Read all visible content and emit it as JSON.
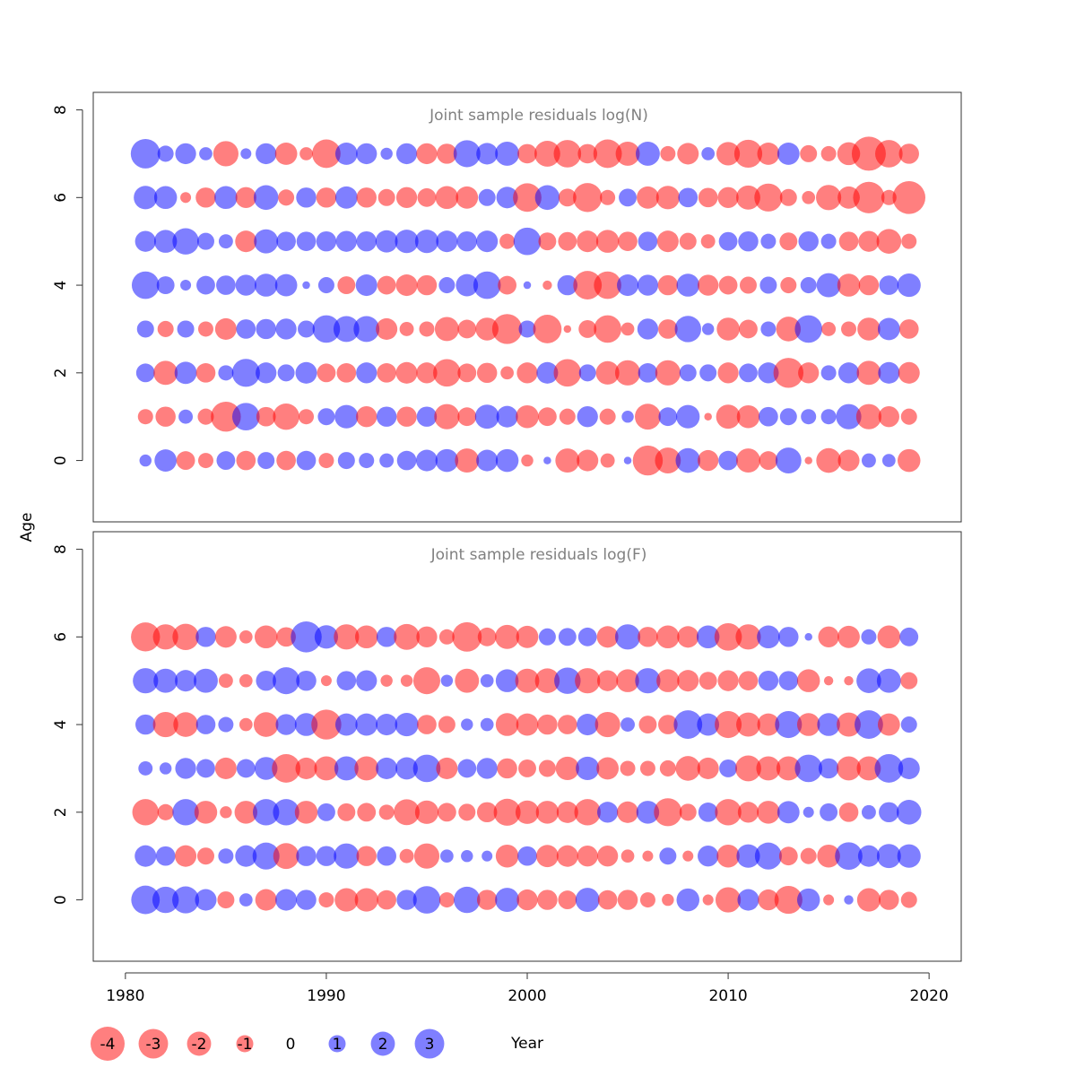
{
  "chart_data": {
    "type": "scatter",
    "subtype": "bubble",
    "shared_xlabel": "Year",
    "shared_ylabel": "Age",
    "xlim": [
      1978.4,
      2021.6
    ],
    "x_ticks": [
      1980,
      1990,
      2000,
      2010,
      2020
    ],
    "colors": {
      "negative": "#ff0000",
      "positive": "#0000ff",
      "alpha": 0.5
    },
    "legend": {
      "placement": "bottom",
      "entries": [
        {
          "label": "-4",
          "value": -4
        },
        {
          "label": "-3",
          "value": -3
        },
        {
          "label": "-2",
          "value": -2
        },
        {
          "label": "-1",
          "value": -1
        },
        {
          "label": "0",
          "value": 0
        },
        {
          "label": "1",
          "value": 1
        },
        {
          "label": "2",
          "value": 2
        },
        {
          "label": "3",
          "value": 3
        }
      ]
    },
    "panels": [
      {
        "title": "Joint sample residuals log(N)",
        "ylim": [
          -1.4,
          8.4
        ],
        "y_ticks": [
          0,
          2,
          4,
          6,
          8
        ],
        "years": [
          1981,
          1982,
          1983,
          1984,
          1985,
          1986,
          1987,
          1988,
          1989,
          1990,
          1991,
          1992,
          1993,
          1994,
          1995,
          1996,
          1997,
          1998,
          1999,
          2000,
          2001,
          2002,
          2003,
          2004,
          2005,
          2006,
          2007,
          2008,
          2009,
          2010,
          2011,
          2012,
          2013,
          2014,
          2015,
          2016,
          2017,
          2018,
          2019
        ],
        "ages": [
          0,
          1,
          2,
          3,
          4,
          5,
          6,
          7
        ],
        "residuals": [
          [
            0.5,
            1.7,
            -1.2,
            -0.8,
            1.2,
            -1.3,
            1.0,
            -1.3,
            1.3,
            -0.8,
            1.0,
            0.8,
            0.7,
            1.3,
            1.6,
            1.8,
            -2.0,
            1.6,
            1.8,
            -0.5,
            0.2,
            -2.0,
            -1.6,
            -0.7,
            0.2,
            -3.1,
            -2.3,
            2.1,
            -1.5,
            1.3,
            -2.0,
            -1.2,
            2.3,
            -0.2,
            -2.1,
            -1.6,
            0.7,
            0.6,
            -1.8
          ],
          [
            -0.8,
            -1.4,
            0.7,
            -0.9,
            -3.1,
            2.6,
            -1.3,
            -2.4,
            -0.8,
            1.0,
            1.9,
            -1.5,
            1.4,
            -1.4,
            1.4,
            -2.2,
            -1.2,
            2.0,
            1.6,
            -1.8,
            -1.2,
            -0.9,
            1.5,
            -0.9,
            0.5,
            -2.3,
            1.2,
            1.9,
            -0.2,
            -2.0,
            -1.8,
            1.3,
            1.0,
            0.8,
            0.8,
            2.2,
            -2.2,
            -1.5,
            -0.9
          ],
          [
            1.2,
            -2.0,
            1.7,
            -1.3,
            0.8,
            2.7,
            1.5,
            1.0,
            1.6,
            -1.2,
            -1.3,
            1.5,
            -1.3,
            -1.6,
            -1.5,
            -2.6,
            -1.2,
            -1.4,
            -0.6,
            -1.5,
            1.6,
            -2.6,
            1.0,
            -1.9,
            -2.2,
            1.3,
            -2.2,
            1.0,
            1.0,
            -1.5,
            1.2,
            1.5,
            -3.1,
            -1.5,
            0.8,
            1.5,
            -2.0,
            1.6,
            -1.6
          ],
          [
            1.0,
            -0.9,
            1.0,
            -0.8,
            -1.6,
            1.3,
            1.4,
            1.5,
            1.0,
            2.6,
            2.3,
            2.3,
            -1.6,
            -0.7,
            -0.8,
            -2.0,
            -1.2,
            -1.8,
            -3.1,
            1.0,
            -2.8,
            -0.2,
            -1.1,
            -2.6,
            -0.6,
            1.5,
            -1.3,
            2.4,
            0.5,
            -1.8,
            -1.2,
            0.8,
            -2.1,
            2.6,
            -0.7,
            -0.8,
            -1.8,
            1.7,
            -1.3
          ],
          [
            2.6,
            1.1,
            0.4,
            1.2,
            1.3,
            1.5,
            1.8,
            1.7,
            0.2,
            0.9,
            -1.1,
            1.6,
            -1.2,
            -1.6,
            -1.4,
            0.9,
            1.7,
            2.6,
            -1.2,
            0.2,
            -0.3,
            1.4,
            -2.8,
            -2.6,
            1.6,
            1.5,
            -1.4,
            1.8,
            -1.5,
            -1.2,
            -1.0,
            1.0,
            -0.9,
            0.9,
            2.0,
            -1.8,
            -1.4,
            1.3,
            1.9
          ],
          [
            1.5,
            1.8,
            2.4,
            1.0,
            0.7,
            -1.6,
            2.0,
            1.3,
            1.3,
            1.4,
            1.5,
            1.4,
            1.7,
            1.9,
            1.9,
            1.6,
            1.4,
            1.6,
            -0.8,
            2.6,
            -1.1,
            -1.2,
            -1.6,
            -1.8,
            -1.3,
            1.3,
            -1.6,
            -1.0,
            -0.7,
            1.2,
            1.4,
            0.8,
            -1.1,
            1.4,
            0.8,
            -1.3,
            -1.5,
            -2.1,
            -0.8
          ],
          [
            1.9,
            1.8,
            -0.4,
            -1.4,
            1.8,
            -1.5,
            2.1,
            -0.9,
            1.4,
            -1.4,
            1.7,
            -1.4,
            -1.0,
            -1.5,
            -1.2,
            -1.8,
            -1.7,
            1.0,
            1.6,
            -2.8,
            2.1,
            -1.1,
            -2.9,
            -0.8,
            1.1,
            -1.7,
            -1.9,
            1.3,
            -1.3,
            -1.5,
            -2.0,
            -2.7,
            -1.0,
            -0.6,
            -2.2,
            -1.7,
            -3.4,
            -0.8,
            -3.7
          ],
          [
            3.0,
            0.9,
            1.5,
            0.6,
            -2.2,
            0.4,
            1.5,
            -1.7,
            -0.6,
            -2.8,
            1.7,
            1.5,
            0.5,
            1.5,
            -1.5,
            -1.4,
            2.5,
            1.6,
            2.0,
            -1.3,
            -2.3,
            -2.6,
            -1.3,
            -2.8,
            -2.0,
            2.0,
            -0.8,
            -1.6,
            0.6,
            -1.9,
            -2.7,
            -1.7,
            1.7,
            -1.0,
            -0.8,
            -1.8,
            -4.0,
            -2.6,
            -1.4
          ]
        ]
      },
      {
        "title": "Joint sample residuals log(F)",
        "ylim": [
          -1.4,
          8.4
        ],
        "y_ticks": [
          0,
          2,
          4,
          6,
          8
        ],
        "years": [
          1981,
          1982,
          1983,
          1984,
          1985,
          1986,
          1987,
          1988,
          1989,
          1990,
          1991,
          1992,
          1993,
          1994,
          1995,
          1996,
          1997,
          1998,
          1999,
          2000,
          2001,
          2002,
          2003,
          2004,
          2005,
          2006,
          2007,
          2008,
          2009,
          2010,
          2011,
          2012,
          2013,
          2014,
          2015,
          2016,
          2017,
          2018,
          2019
        ],
        "ages": [
          0,
          1,
          2,
          3,
          4,
          5,
          6
        ],
        "residuals": [
          [
            2.8,
            2.4,
            2.5,
            1.6,
            -1.0,
            0.6,
            -1.6,
            1.6,
            1.4,
            -0.8,
            -1.9,
            -1.9,
            -1.3,
            1.4,
            2.6,
            -0.8,
            2.4,
            -1.4,
            2.0,
            -1.5,
            -1.4,
            -1.2,
            2.0,
            -1.3,
            -1.4,
            -0.8,
            -0.5,
            1.8,
            -0.4,
            -2.2,
            1.6,
            -1.5,
            -2.7,
            1.8,
            -0.4,
            0.3,
            -1.9,
            -1.4,
            -0.9
          ],
          [
            1.6,
            1.3,
            -1.6,
            -1.0,
            0.8,
            1.6,
            2.5,
            -2.3,
            1.4,
            1.4,
            2.2,
            -1.4,
            1.3,
            -0.7,
            -2.2,
            0.6,
            0.5,
            0.4,
            -1.8,
            1.3,
            -1.7,
            -1.6,
            -1.5,
            -1.5,
            -0.6,
            -0.4,
            1.0,
            -0.4,
            1.5,
            -1.8,
            1.9,
            2.5,
            -1.2,
            -0.9,
            -1.8,
            2.6,
            1.6,
            2.0,
            1.9
          ],
          [
            -2.4,
            -0.9,
            2.4,
            -1.8,
            -0.5,
            -1.8,
            2.4,
            2.4,
            -1.8,
            1.1,
            -1.1,
            -1.2,
            -0.8,
            -2.3,
            -1.9,
            -1.2,
            -1.0,
            -1.4,
            -2.5,
            -1.9,
            -1.8,
            -1.6,
            -2.4,
            1.5,
            -1.6,
            1.8,
            -2.7,
            -1.0,
            1.3,
            -2.4,
            -1.5,
            -1.8,
            1.7,
            0.4,
            1.1,
            -1.3,
            0.7,
            1.4,
            2.1
          ],
          [
            0.7,
            0.5,
            1.5,
            1.2,
            -1.6,
            1.2,
            1.8,
            -2.8,
            -1.6,
            -2.0,
            2.0,
            -2.0,
            1.6,
            1.7,
            2.6,
            -1.6,
            1.2,
            1.5,
            -1.4,
            -1.1,
            -1.0,
            -1.9,
            1.9,
            -1.7,
            -0.8,
            -0.8,
            -0.9,
            -2.1,
            -1.6,
            1.1,
            -2.3,
            -2.0,
            -2.0,
            2.6,
            1.4,
            -2.0,
            -2.0,
            2.8,
            1.6
          ],
          [
            1.4,
            -2.2,
            -2.1,
            1.3,
            0.8,
            -0.6,
            -2.1,
            1.5,
            1.8,
            -3.1,
            1.7,
            1.7,
            1.6,
            1.9,
            -1.3,
            -1.0,
            0.5,
            0.6,
            -1.8,
            -1.7,
            -1.4,
            -1.3,
            1.6,
            -2.2,
            0.7,
            -1.1,
            -1.3,
            2.8,
            1.7,
            -2.5,
            -2.0,
            -1.7,
            2.5,
            -1.8,
            1.8,
            -2.0,
            2.8,
            -1.7,
            0.9
          ],
          [
            2.2,
            2.0,
            1.6,
            2.0,
            -0.7,
            -0.6,
            1.4,
            2.5,
            1.4,
            -0.4,
            1.3,
            1.5,
            -0.5,
            -0.5,
            -2.5,
            0.5,
            -2.0,
            0.6,
            1.8,
            -2.0,
            -2.1,
            2.4,
            -2.2,
            -1.5,
            -1.8,
            2.2,
            -1.8,
            -1.6,
            -1.1,
            -1.5,
            -1.3,
            1.4,
            1.3,
            -1.8,
            -0.3,
            -0.3,
            2.1,
            2.0,
            -1.0
          ],
          [
            -2.9,
            -2.2,
            -2.4,
            1.4,
            -1.6,
            -0.6,
            -1.8,
            -1.3,
            3.3,
            1.9,
            -2.2,
            -1.8,
            1.4,
            -2.3,
            -1.5,
            -0.8,
            -3.0,
            -1.2,
            -2.0,
            -1.7,
            1.0,
            1.1,
            1.2,
            -1.6,
            2.2,
            -1.4,
            -1.8,
            -1.6,
            1.8,
            -2.6,
            -2.2,
            1.8,
            1.4,
            0.2,
            -1.5,
            -1.7,
            0.8,
            -1.8,
            1.2
          ]
        ]
      }
    ]
  }
}
